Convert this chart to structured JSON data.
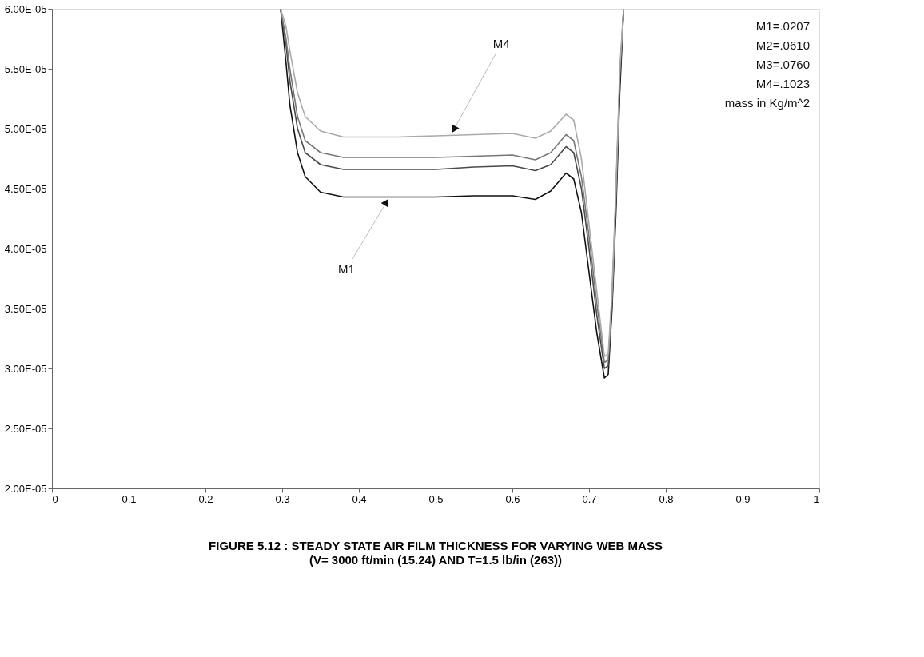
{
  "chart_data": {
    "type": "line",
    "title": "FIGURE 5.12 : STEADY STATE AIR FILM THICKNESS FOR VARYING WEB MASS",
    "subtitle": "(V= 3000 ft/min (15.24) AND T=1.5 lb/in (263))",
    "x": [
      0.298,
      0.305,
      0.31,
      0.32,
      0.33,
      0.35,
      0.38,
      0.45,
      0.5,
      0.55,
      0.6,
      0.63,
      0.65,
      0.67,
      0.68,
      0.69,
      0.7,
      0.71,
      0.72,
      0.725,
      0.73,
      0.735,
      0.74,
      0.745
    ],
    "series": [
      {
        "color": "#111111",
        "values": [
          6e-05,
          5.55e-05,
          5.2e-05,
          4.8e-05,
          4.6e-05,
          4.47e-05,
          4.43e-05,
          4.43e-05,
          4.43e-05,
          4.44e-05,
          4.44e-05,
          4.41e-05,
          4.48e-05,
          4.63e-05,
          4.58e-05,
          4.3e-05,
          3.8e-05,
          3.3e-05,
          2.92e-05,
          2.95e-05,
          3.5e-05,
          4.3e-05,
          5.3e-05,
          6e-05
        ]
      },
      {
        "color": "#4a4a4a",
        "values": [
          6e-05,
          5.7e-05,
          5.4e-05,
          5e-05,
          4.8e-05,
          4.7e-05,
          4.66e-05,
          4.66e-05,
          4.66e-05,
          4.68e-05,
          4.69e-05,
          4.65e-05,
          4.7e-05,
          4.85e-05,
          4.8e-05,
          4.5e-05,
          4e-05,
          3.45e-05,
          3e-05,
          3.02e-05,
          3.55e-05,
          4.4e-05,
          5.4e-05,
          6e-05
        ]
      },
      {
        "color": "#777777",
        "values": [
          6e-05,
          5.75e-05,
          5.5e-05,
          5.1e-05,
          4.9e-05,
          4.8e-05,
          4.76e-05,
          4.76e-05,
          4.76e-05,
          4.77e-05,
          4.78e-05,
          4.74e-05,
          4.8e-05,
          4.95e-05,
          4.9e-05,
          4.6e-05,
          4.1e-05,
          3.55e-05,
          3.05e-05,
          3.07e-05,
          3.6e-05,
          4.45e-05,
          5.45e-05,
          6e-05
        ]
      },
      {
        "color": "#aaaaaa",
        "values": [
          6e-05,
          5.85e-05,
          5.65e-05,
          5.3e-05,
          5.1e-05,
          4.98e-05,
          4.93e-05,
          4.93e-05,
          4.94e-05,
          4.95e-05,
          4.96e-05,
          4.92e-05,
          4.98e-05,
          5.12e-05,
          5.07e-05,
          4.75e-05,
          4.2e-05,
          3.65e-05,
          3.1e-05,
          3.12e-05,
          3.65e-05,
          4.5e-05,
          5.5e-05,
          6e-05
        ]
      }
    ],
    "annotations": [
      {
        "text": "M4",
        "x": 0.52,
        "y": 4.95e-05
      },
      {
        "text": "M1",
        "x": 0.44,
        "y": 4.43e-05
      },
      "M1=.0207",
      "M2=.0610",
      "M3=.0760",
      "M4=.1023",
      "mass in Kg/m^2"
    ],
    "xlim": [
      0,
      1
    ],
    "xticks": [
      0,
      0.1,
      0.2,
      0.3,
      0.4,
      0.5,
      0.6,
      0.7,
      0.8,
      0.9,
      1
    ],
    "ylim": [
      2e-05,
      6e-05
    ],
    "yticks": [
      {
        "value": 2e-05,
        "label": "2.00E-05"
      },
      {
        "value": 2.5e-05,
        "label": "2.50E-05"
      },
      {
        "value": 3e-05,
        "label": "3.00E-05"
      },
      {
        "value": 3.5e-05,
        "label": "3.50E-05"
      },
      {
        "value": 4e-05,
        "label": "4.00E-05"
      },
      {
        "value": 4.5e-05,
        "label": "4.50E-05"
      },
      {
        "value": 5e-05,
        "label": "5.00E-05"
      },
      {
        "value": 5.5e-05,
        "label": "5.50E-05"
      },
      {
        "value": 6e-05,
        "label": "6.00E-05"
      }
    ],
    "grid": false,
    "marker": "none",
    "line_style": "solid"
  }
}
